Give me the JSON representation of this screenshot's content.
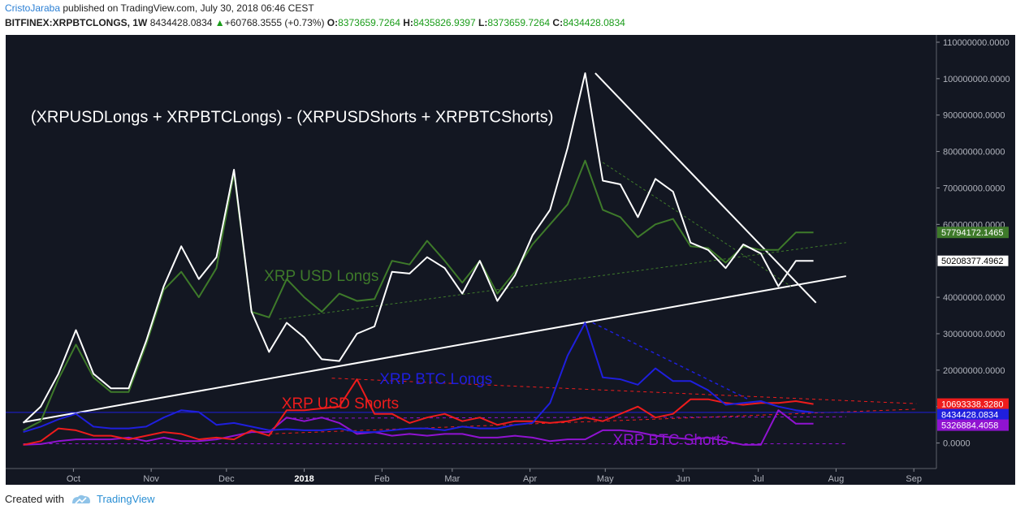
{
  "header": {
    "author": "CristoJaraba",
    "published_text": "published on TradingView.com, July 30, 2018 06:46 CEST"
  },
  "symbol_bar": {
    "symbol": "BITFINEX:XRPBTCLONGS, 1W",
    "last": "8434428.0834",
    "change": "+60768.3555 (+0.73%)",
    "o_label": "O:",
    "o_value": "8373659.7264",
    "h_label": "H:",
    "h_value": "8435826.9397",
    "l_label": "L:",
    "l_value": "8373659.7264",
    "c_label": "C:",
    "c_value": "8434428.0834"
  },
  "footer": {
    "created_with": "Created with",
    "brand": "TradingView"
  },
  "colors": {
    "background": "#131722",
    "white": "#ffffff",
    "green": "#3e7a2a",
    "blue": "#1f1fdd",
    "red": "#ee1c1c",
    "purple": "#9013d1"
  },
  "chart_data": {
    "type": "line",
    "x": [
      "2017-09-11",
      "2017-09-18",
      "2017-09-25",
      "2017-10-02",
      "2017-10-09",
      "2017-10-16",
      "2017-10-23",
      "2017-10-30",
      "2017-11-06",
      "2017-11-13",
      "2017-11-20",
      "2017-11-27",
      "2017-12-04",
      "2017-12-11",
      "2017-12-18",
      "2017-12-25",
      "2018-01-01",
      "2018-01-08",
      "2018-01-15",
      "2018-01-22",
      "2018-01-29",
      "2018-02-05",
      "2018-02-12",
      "2018-02-19",
      "2018-02-26",
      "2018-03-05",
      "2018-03-12",
      "2018-03-19",
      "2018-03-26",
      "2018-04-02",
      "2018-04-09",
      "2018-04-16",
      "2018-04-23",
      "2018-04-30",
      "2018-05-07",
      "2018-05-14",
      "2018-05-21",
      "2018-05-28",
      "2018-06-04",
      "2018-06-11",
      "2018-06-18",
      "2018-06-25",
      "2018-07-02",
      "2018-07-09",
      "2018-07-16",
      "2018-07-23"
    ],
    "xlim": [
      "2017-09-04",
      "2018-09-10"
    ],
    "ylim": [
      -7000000,
      112000000
    ],
    "y_ticks": [
      "110000000.0000",
      "100000000.0000",
      "90000000.0000",
      "80000000.0000",
      "70000000.0000",
      "60000000.0000",
      "50000000.0000",
      "40000000.0000",
      "30000000.0000",
      "20000000.0000",
      "10000000.0000",
      "0.0000"
    ],
    "x_ticks": [
      {
        "date": "2017-10-01",
        "label": "Oct",
        "bold": false
      },
      {
        "date": "2017-11-01",
        "label": "Nov",
        "bold": false
      },
      {
        "date": "2017-12-01",
        "label": "Dec",
        "bold": false
      },
      {
        "date": "2018-01-01",
        "label": "2018",
        "bold": true
      },
      {
        "date": "2018-02-01",
        "label": "Feb",
        "bold": false
      },
      {
        "date": "2018-03-01",
        "label": "Mar",
        "bold": false
      },
      {
        "date": "2018-04-01",
        "label": "Apr",
        "bold": false
      },
      {
        "date": "2018-05-01",
        "label": "May",
        "bold": false
      },
      {
        "date": "2018-06-01",
        "label": "Jun",
        "bold": false
      },
      {
        "date": "2018-07-01",
        "label": "Jul",
        "bold": false
      },
      {
        "date": "2018-08-01",
        "label": "Aug",
        "bold": false
      },
      {
        "date": "2018-09-01",
        "label": "Sep",
        "bold": false
      }
    ],
    "series": [
      {
        "name": "",
        "color": "#ffffff",
        "width": 2,
        "values": [
          5500000,
          10000000,
          19000000,
          31000000,
          19000000,
          15000000,
          15000000,
          28000000,
          43000000,
          54000000,
          45000000,
          51000000,
          75000000,
          36000000,
          25000000,
          33000000,
          29000000,
          23000000,
          22500000,
          30000000,
          32000000,
          47000000,
          46500000,
          51000000,
          48000000,
          41000000,
          50000000,
          39000000,
          46000000,
          57000000,
          64000000,
          81000000,
          101500000,
          72000000,
          71000000,
          62000000,
          72500000,
          69000000,
          55000000,
          53000000,
          48000000,
          54500000,
          52000000,
          43000000,
          50000000,
          50000000
        ],
        "last_label": "50208377.4962"
      },
      {
        "name": "XRP USD Longs",
        "color": "#3e7a2a",
        "width": 2,
        "values": [
          3500000,
          6000000,
          17500000,
          27000000,
          18000000,
          14000000,
          14000000,
          27000000,
          42000000,
          47000000,
          40000000,
          48000000,
          74000000,
          36000000,
          34500000,
          45000000,
          40000000,
          36000000,
          41000000,
          39000000,
          39500000,
          50000000,
          49000000,
          55500000,
          50000000,
          44000000,
          50000000,
          41000000,
          47000000,
          54500000,
          60000000,
          65500000,
          77500000,
          64000000,
          62000000,
          56500000,
          60000000,
          61500000,
          54000000,
          53500000,
          49500000,
          54000000,
          53000000,
          53000000,
          57800000,
          57800000
        ],
        "last_label": "57794172.1465"
      },
      {
        "name": "XRP BTC Longs",
        "color": "#1f1fdd",
        "width": 2,
        "values": [
          3000000,
          4500000,
          6500000,
          8000000,
          4500000,
          4000000,
          4000000,
          4500000,
          7000000,
          9000000,
          8500000,
          5000000,
          5500000,
          4500000,
          3500000,
          3800000,
          3500000,
          3500000,
          4000000,
          3000000,
          3000000,
          3500000,
          4000000,
          4000000,
          3500000,
          4500000,
          4000000,
          4000000,
          5000000,
          5500000,
          11000000,
          24000000,
          33000000,
          18000000,
          17500000,
          16000000,
          20500000,
          17000000,
          17000000,
          14500000,
          10500000,
          11000000,
          11500000,
          10000000,
          9000000,
          8400000
        ],
        "last_label": "8434428.0834"
      },
      {
        "name": "XRP USD Shorts",
        "color": "#ee1c1c",
        "width": 2,
        "values": [
          -500000,
          500000,
          4000000,
          3500000,
          2000000,
          2000000,
          1000000,
          2000000,
          3000000,
          2500000,
          1000000,
          1500000,
          1000000,
          3500000,
          2000000,
          9000000,
          9000000,
          9500000,
          10000000,
          17500000,
          8000000,
          8000000,
          5500000,
          7000000,
          8000000,
          6000000,
          7000000,
          5000000,
          6000000,
          6000000,
          5500000,
          6000000,
          7000000,
          6000000,
          8000000,
          10000000,
          7000000,
          8000000,
          12000000,
          12000000,
          11000000,
          10500000,
          11000000,
          11000000,
          11500000,
          10700000
        ],
        "last_label": "10693338.3280"
      },
      {
        "name": "XRP BTC Shorts",
        "color": "#9013d1",
        "width": 2,
        "values": [
          -500000,
          -300000,
          500000,
          1000000,
          1000000,
          1000000,
          1500000,
          500000,
          1500000,
          500000,
          500000,
          1000000,
          2000000,
          3000000,
          3000000,
          7000000,
          6000000,
          7000000,
          5500000,
          2500000,
          3000000,
          2000000,
          2500000,
          2000000,
          2500000,
          2500000,
          1500000,
          1500000,
          2000000,
          1500000,
          500000,
          1000000,
          1000000,
          3500000,
          3500000,
          3000000,
          2000000,
          1500000,
          1000000,
          1500000,
          500000,
          -500000,
          -500000,
          9000000,
          5300000,
          5300000
        ],
        "last_label": "5326884.4058"
      }
    ],
    "annotations": [
      {
        "text": "(XRPUSDLongs + XRPBTCLongs) - (XRPUSDShorts + XRPBTCShorts)",
        "color": "#ffffff",
        "x": "2017-09-14",
        "y": 88000000,
        "size": 20
      },
      {
        "text": "XRP USD Longs",
        "color": "#3e7a2a",
        "x": "2017-12-16",
        "y": 44500000,
        "size": 19
      },
      {
        "text": "XRP BTC Longs",
        "color": "#1f1fdd",
        "x": "2018-01-31",
        "y": 16200000,
        "size": 19
      },
      {
        "text": "XRP USD Shorts",
        "color": "#ee1c1c",
        "x": "2017-12-23",
        "y": 9500000,
        "size": 19
      },
      {
        "text": "XRP BTC Shorts",
        "color": "#9013d1",
        "x": "2018-05-04",
        "y": -500000,
        "size": 19
      }
    ],
    "trendlines": [
      {
        "color": "#ffffff",
        "width": 2,
        "dash": "",
        "from": [
          "2017-09-11",
          5700000
        ],
        "to": [
          "2018-08-05",
          45800000
        ]
      },
      {
        "color": "#ffffff",
        "width": 2,
        "dash": "",
        "from": [
          "2018-04-27",
          101500000
        ],
        "to": [
          "2018-07-24",
          38500000
        ]
      },
      {
        "color": "#3e7a2a",
        "width": 1,
        "dash": "3,3",
        "from": [
          "2017-12-22",
          34000000
        ],
        "to": [
          "2018-08-05",
          55000000
        ]
      },
      {
        "color": "#3e7a2a",
        "width": 1,
        "dash": "3,3",
        "from": [
          "2018-04-30",
          77000000
        ],
        "to": [
          "2018-07-14",
          43000000
        ]
      },
      {
        "color": "#1f1fdd",
        "width": 1.5,
        "dash": "4,4",
        "from": [
          "2018-04-26",
          33000000
        ],
        "to": [
          "2018-06-27",
          12000000
        ]
      },
      {
        "color": "#ee1c1c",
        "width": 1,
        "dash": "4,4",
        "from": [
          "2018-01-12",
          17800000
        ],
        "to": [
          "2018-09-02",
          10800000
        ]
      },
      {
        "color": "#ee1c1c",
        "width": 1,
        "dash": "4,4",
        "from": [
          "2017-12-18",
          2500000
        ],
        "to": [
          "2018-09-02",
          9300000
        ]
      },
      {
        "color": "#9013d1",
        "width": 1,
        "dash": "4,4",
        "from": [
          "2017-09-11",
          -200000
        ],
        "to": [
          "2018-08-05",
          -200000
        ]
      },
      {
        "color": "#9013d1",
        "width": 1,
        "dash": "4,4",
        "from": [
          "2017-12-25",
          6800000
        ],
        "to": [
          "2018-08-05",
          7200000
        ]
      },
      {
        "color": "#1f1fdd",
        "width": 1,
        "dash": "",
        "from": [
          "2017-09-04",
          8400000
        ],
        "to": [
          "2018-09-10",
          8400000
        ]
      }
    ]
  }
}
